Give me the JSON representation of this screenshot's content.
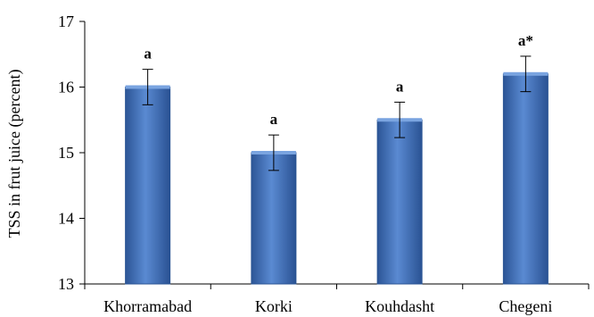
{
  "chart_data": {
    "type": "bar",
    "title": "",
    "xlabel": "",
    "ylabel": "TSS in frut juice (percent)",
    "categories": [
      "Khorramabad",
      "Korki",
      "Kouhdasht",
      "Chegeni"
    ],
    "values": [
      16.0,
      15.0,
      15.5,
      16.2
    ],
    "error": [
      0.27,
      0.27,
      0.27,
      0.27
    ],
    "labels": [
      "a",
      "a",
      "a",
      "a*"
    ],
    "ylim": [
      13,
      17
    ],
    "yticks": [
      13,
      14,
      15,
      16,
      17
    ],
    "grid": false,
    "legend": "none",
    "bar_color": "#3f6fb8",
    "bar_edge_color": "#2b5594"
  }
}
